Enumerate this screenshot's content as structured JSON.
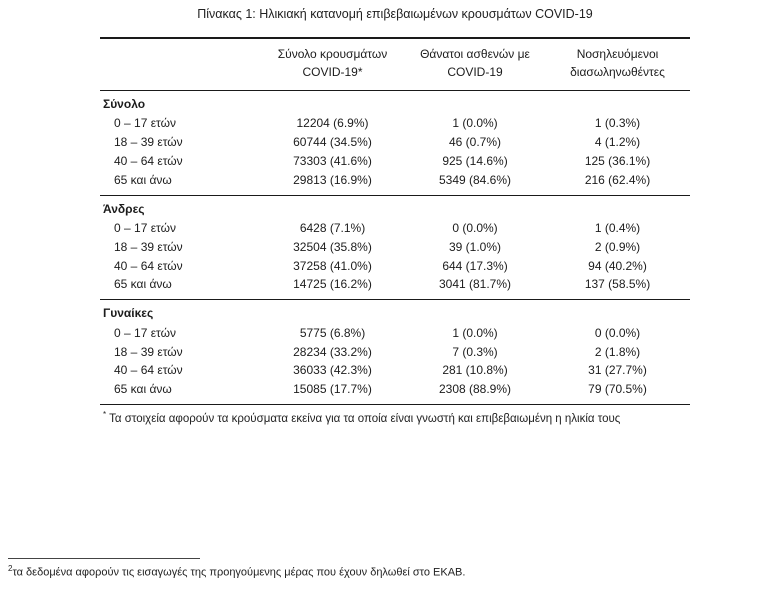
{
  "title": "Πίνακας 1: Ηλικιακή κατανομή επιβεβαιωμένων κρουσμάτων COVID-19",
  "table": {
    "columns": [
      {
        "line1": "Σύνολο κρουσμάτων",
        "line2": "COVID-19*"
      },
      {
        "line1": "Θάνατοι ασθενών με",
        "line2": "COVID-19"
      },
      {
        "line1": "Νοσηλευόμενοι",
        "line2": "διασωληνωθέντες"
      }
    ],
    "sections": [
      {
        "label": "Σύνολο",
        "rows": [
          [
            "0 – 17 ετών",
            "12204 (6.9%)",
            "1 (0.0%)",
            "1 (0.3%)"
          ],
          [
            "18 – 39 ετών",
            "60744 (34.5%)",
            "46 (0.7%)",
            "4 (1.2%)"
          ],
          [
            "40 – 64 ετών",
            "73303 (41.6%)",
            "925 (14.6%)",
            "125 (36.1%)"
          ],
          [
            "65 και άνω",
            "29813 (16.9%)",
            "5349 (84.6%)",
            "216 (62.4%)"
          ]
        ]
      },
      {
        "label": "Άνδρες",
        "rows": [
          [
            "0 – 17 ετών",
            "6428 (7.1%)",
            "0 (0.0%)",
            "1 (0.4%)"
          ],
          [
            "18 – 39 ετών",
            "32504 (35.8%)",
            "39 (1.0%)",
            "2 (0.9%)"
          ],
          [
            "40 – 64 ετών",
            "37258 (41.0%)",
            "644 (17.3%)",
            "94 (40.2%)"
          ],
          [
            "65 και άνω",
            "14725 (16.2%)",
            "3041 (81.7%)",
            "137 (58.5%)"
          ]
        ]
      },
      {
        "label": "Γυναίκες",
        "rows": [
          [
            "0 – 17 ετών",
            "5775 (6.8%)",
            "1 (0.0%)",
            "0 (0.0%)"
          ],
          [
            "18 – 39 ετών",
            "28234 (33.2%)",
            "7 (0.3%)",
            "2 (1.8%)"
          ],
          [
            "40 – 64 ετών",
            "36033 (42.3%)",
            "281 (10.8%)",
            "31 (27.7%)"
          ],
          [
            "65 και άνω",
            "15085 (17.7%)",
            "2308 (88.9%)",
            "79 (70.5%)"
          ]
        ]
      }
    ],
    "footnote_marker": "*",
    "footnote_text": "Τα στοιχεία αφορούν τα κρούσματα εκείνα για τα οποία είναι γνωστή και επιβεβαιωμένη η ηλικία τους"
  },
  "page_footnote": {
    "marker": "2",
    "text": "τα δεδομένα αφορούν τις εισαγωγές της προηγούμενης μέρας που έχουν δηλωθεί στο ΕΚΑΒ."
  }
}
